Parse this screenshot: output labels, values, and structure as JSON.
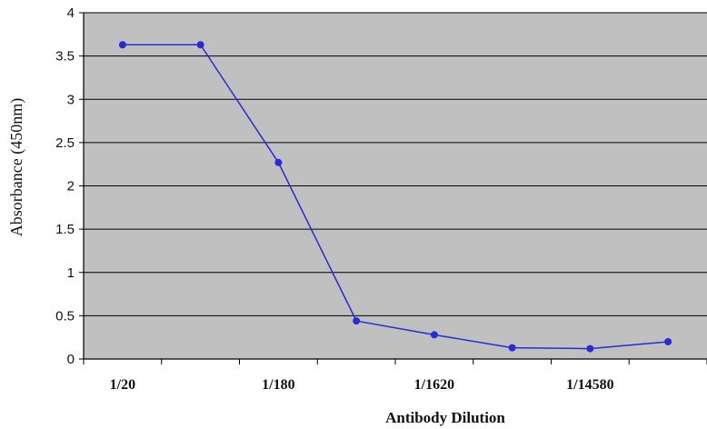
{
  "chart_data": {
    "type": "line",
    "title": "",
    "xlabel": "Antibody Dilution",
    "ylabel": "Absorbance (450nm)",
    "ylim": [
      0,
      4
    ],
    "yticks": [
      0,
      0.5,
      1,
      1.5,
      2,
      2.5,
      3,
      3.5,
      4
    ],
    "ytick_labels": [
      "0",
      "0.5",
      "1",
      "1.5",
      "2",
      "2.5",
      "3",
      "3.5",
      "4"
    ],
    "categories": [
      "1/20",
      "",
      "1/180",
      "",
      "1/1620",
      "",
      "1/14580",
      ""
    ],
    "grid": true,
    "legend": "none",
    "series": [
      {
        "values": [
          3.63,
          3.63,
          2.27,
          0.44,
          0.28,
          0.13,
          0.12,
          0.2
        ],
        "color": "#2a2ad6"
      }
    ],
    "colors": {
      "plot_background": "#c0c0c0",
      "grid": "#000000",
      "line": "#2a2ad6"
    }
  }
}
